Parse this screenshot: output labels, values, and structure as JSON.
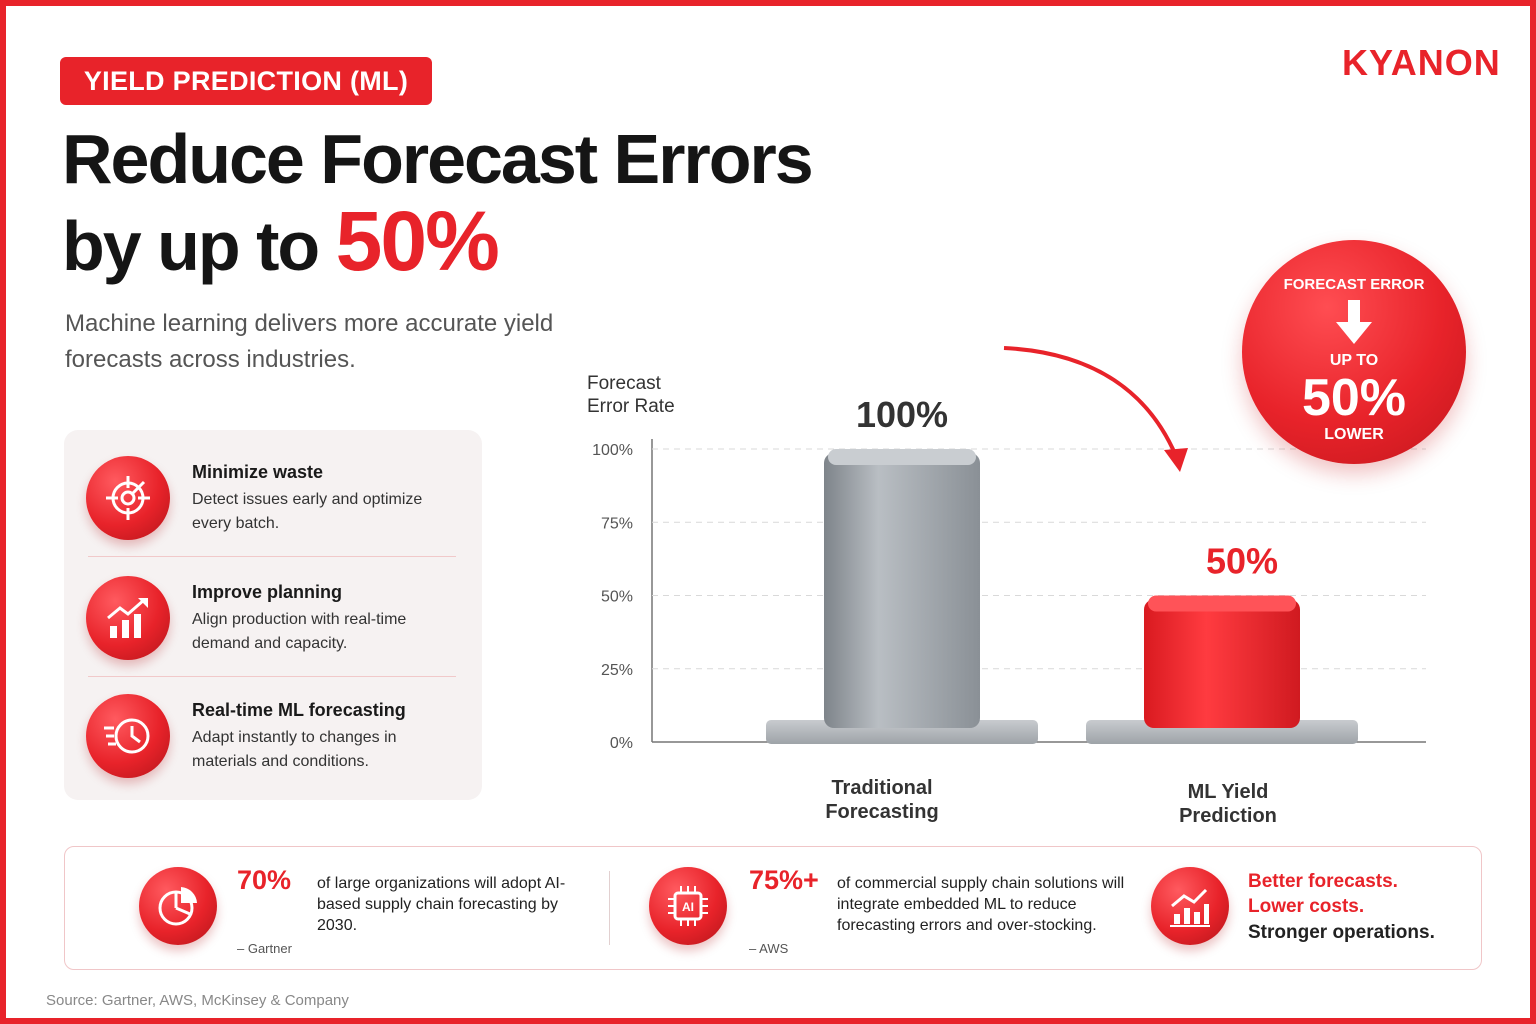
{
  "badge": "YIELD PREDICTION (ML)",
  "logo": "KYANON",
  "headline": {
    "line1": "Reduce Forecast Errors",
    "line2_prefix": "by up to",
    "line2_accent": "50%"
  },
  "subtitle": "Machine learning delivers more accurate yield forecasts across industries.",
  "features": [
    {
      "icon": "target-icon",
      "title": "Minimize waste",
      "desc": "Detect issues early and optimize every batch."
    },
    {
      "icon": "growth-chart-icon",
      "title": "Improve planning",
      "desc": "Align production with real-time demand and capacity."
    },
    {
      "icon": "clock-icon",
      "title": "Real-time ML forecasting",
      "desc": "Adapt instantly to changes in materials and conditions."
    }
  ],
  "chart_data": {
    "type": "bar",
    "ylabel": "Forecast Error Rate",
    "ylim": [
      0,
      100
    ],
    "yticks": [
      0,
      25,
      50,
      75,
      100
    ],
    "ytick_labels": [
      "0%",
      "25%",
      "50%",
      "75%",
      "100%"
    ],
    "categories": [
      "Traditional Forecasting",
      "ML Yield Prediction"
    ],
    "category_lines": [
      [
        "Traditional",
        "Forecasting"
      ],
      [
        "ML Yield",
        "Prediction"
      ]
    ],
    "values": [
      100,
      50
    ],
    "value_labels": [
      "100%",
      "50%"
    ],
    "colors": [
      "#9aa0a6",
      "#e8232a"
    ],
    "grid": true
  },
  "callout": {
    "line1": "FORECAST ERROR",
    "line2": "UP TO",
    "value": "50%",
    "line3": "LOWER"
  },
  "stats": [
    {
      "icon": "pie-chart-icon",
      "value": "70%",
      "text": "of large organizations will adopt AI-based supply chain forecasting by 2030.",
      "source": "– Gartner"
    },
    {
      "icon": "ai-chip-icon",
      "value": "75%+",
      "text": "of commercial supply chain solutions will integrate embedded ML to reduce forecasting errors and over-stocking.",
      "source": "– AWS"
    }
  ],
  "tagline": {
    "line1": "Better forecasts.",
    "line2": "Lower costs.",
    "line3": "Stronger operations.",
    "icon": "bar-growth-icon"
  },
  "source": "Source: Gartner, AWS, McKinsey & Company",
  "colors": {
    "accent": "#e8232a",
    "neutral_bar": "#9aa0a6"
  }
}
